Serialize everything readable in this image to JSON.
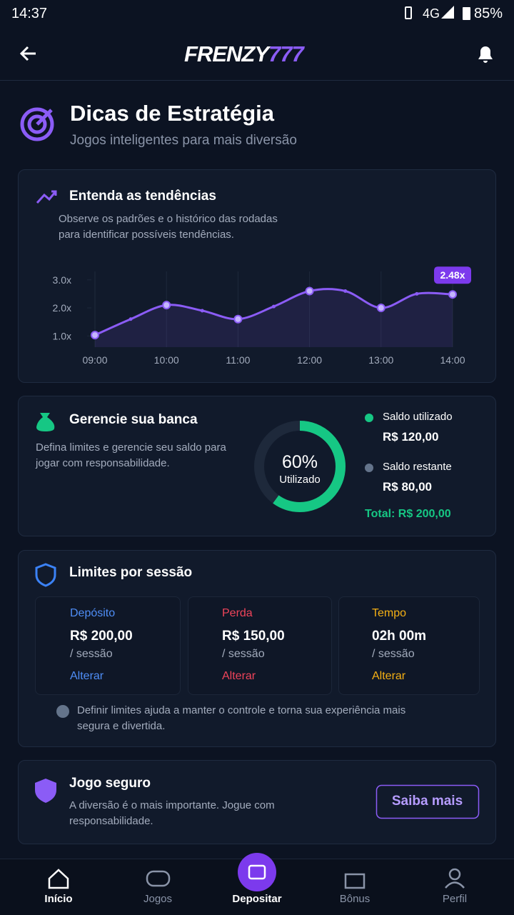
{
  "status_bar": {
    "time": "14:37",
    "network": "4G",
    "battery": "85%"
  },
  "header": {
    "logo_main": "FRENZY",
    "logo_accent": "777"
  },
  "page": {
    "title": "Dicas de Estratégia",
    "subtitle": "Jogos inteligentes para mais diversão"
  },
  "trends": {
    "title": "Entenda as tendências",
    "description": "Observe os padrões e o histórico das rodadas para identificar possíveis tendências."
  },
  "chart_data": {
    "type": "line",
    "x": [
      "09:00",
      null,
      "10:00",
      null,
      "11:00",
      null,
      "12:00",
      null,
      "13:00",
      null,
      "14:00"
    ],
    "values": [
      1.03,
      1.6,
      2.1,
      1.9,
      1.6,
      2.05,
      2.6,
      2.6,
      2.0,
      2.5,
      2.48
    ],
    "value_labels": [
      null,
      null,
      null,
      null,
      null,
      null,
      null,
      null,
      null,
      null,
      "2.48x"
    ],
    "color": "#8b5cf6",
    "ylim": [
      0.6,
      3.3
    ],
    "yticks": [
      {
        "value": 1,
        "label": "1.0x"
      },
      {
        "value": 2,
        "label": "2.0x"
      },
      {
        "value": 3,
        "label": "3.0x"
      }
    ],
    "grid": true
  },
  "bankroll": {
    "title": "Gerencie sua banca",
    "description": "Defina limites e gerencie seu saldo para jogar com responsabilidade.",
    "donut": {
      "value": 60,
      "label": "60%",
      "caption": "Utilizado",
      "color": "#16c784"
    },
    "legend": [
      {
        "name": "Saldo utilizado",
        "amount": "R$ 120,00",
        "color": "#16c784"
      },
      {
        "name": "Saldo restante",
        "amount": "R$ 80,00",
        "color": "#64748b"
      }
    ],
    "total": "Total: R$ 200,00"
  },
  "limits": {
    "title": "Limites por sessão",
    "items": [
      {
        "label": "Depósito",
        "amount": "R$ 200,00",
        "unit": "/ sessão",
        "action": "Alterar",
        "color": "#4f8ef7"
      },
      {
        "label": "Perda",
        "amount": "R$ 150,00",
        "unit": "/ sessão",
        "action": "Alterar",
        "color": "#f0445a"
      },
      {
        "label": "Tempo",
        "amount": "02h 00m",
        "unit": "/ sessão",
        "action": "Alterar",
        "color": "#f5b014"
      }
    ],
    "note": "Definir limites ajuda a manter o controle e torna sua experiência mais segura e divertida."
  },
  "safe": {
    "title": "Jogo seguro",
    "text": "A diversão é o mais importante. Jogue com responsabilidade.",
    "button": "Saiba mais"
  },
  "nav": [
    "Início",
    "Jogos",
    "Depositar",
    "Bônus",
    "Perfil"
  ]
}
